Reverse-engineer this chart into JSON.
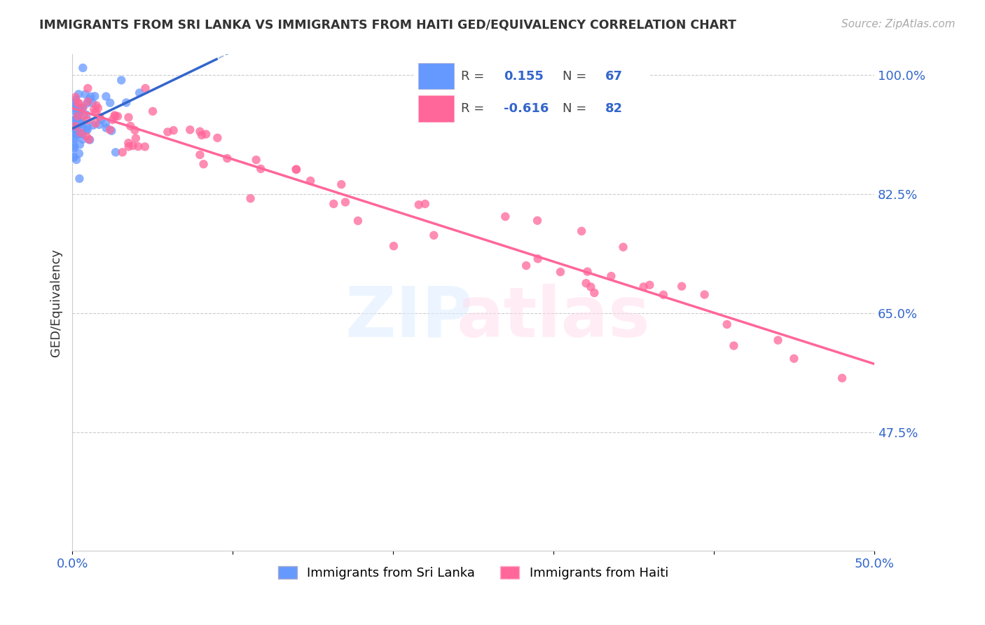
{
  "title": "IMMIGRANTS FROM SRI LANKA VS IMMIGRANTS FROM HAITI GED/EQUIVALENCY CORRELATION CHART",
  "source": "Source: ZipAtlas.com",
  "ylabel": "GED/Equivalency",
  "x_min": 0.0,
  "x_max": 0.5,
  "y_min": 0.3,
  "y_max": 1.03,
  "y_ticks": [
    0.475,
    0.65,
    0.825,
    1.0
  ],
  "y_tick_labels": [
    "47.5%",
    "65.0%",
    "82.5%",
    "100.0%"
  ],
  "x_ticks": [
    0.0,
    0.1,
    0.2,
    0.3,
    0.4,
    0.5
  ],
  "x_tick_labels": [
    "0.0%",
    "",
    "",
    "",
    "",
    "50.0%"
  ],
  "sri_lanka_R": 0.155,
  "sri_lanka_N": 67,
  "haiti_R": -0.616,
  "haiti_N": 82,
  "sri_lanka_color": "#6699FF",
  "haiti_color": "#FF6699",
  "sri_lanka_line_color": "#3366CC",
  "haiti_line_color": "#FF6699"
}
